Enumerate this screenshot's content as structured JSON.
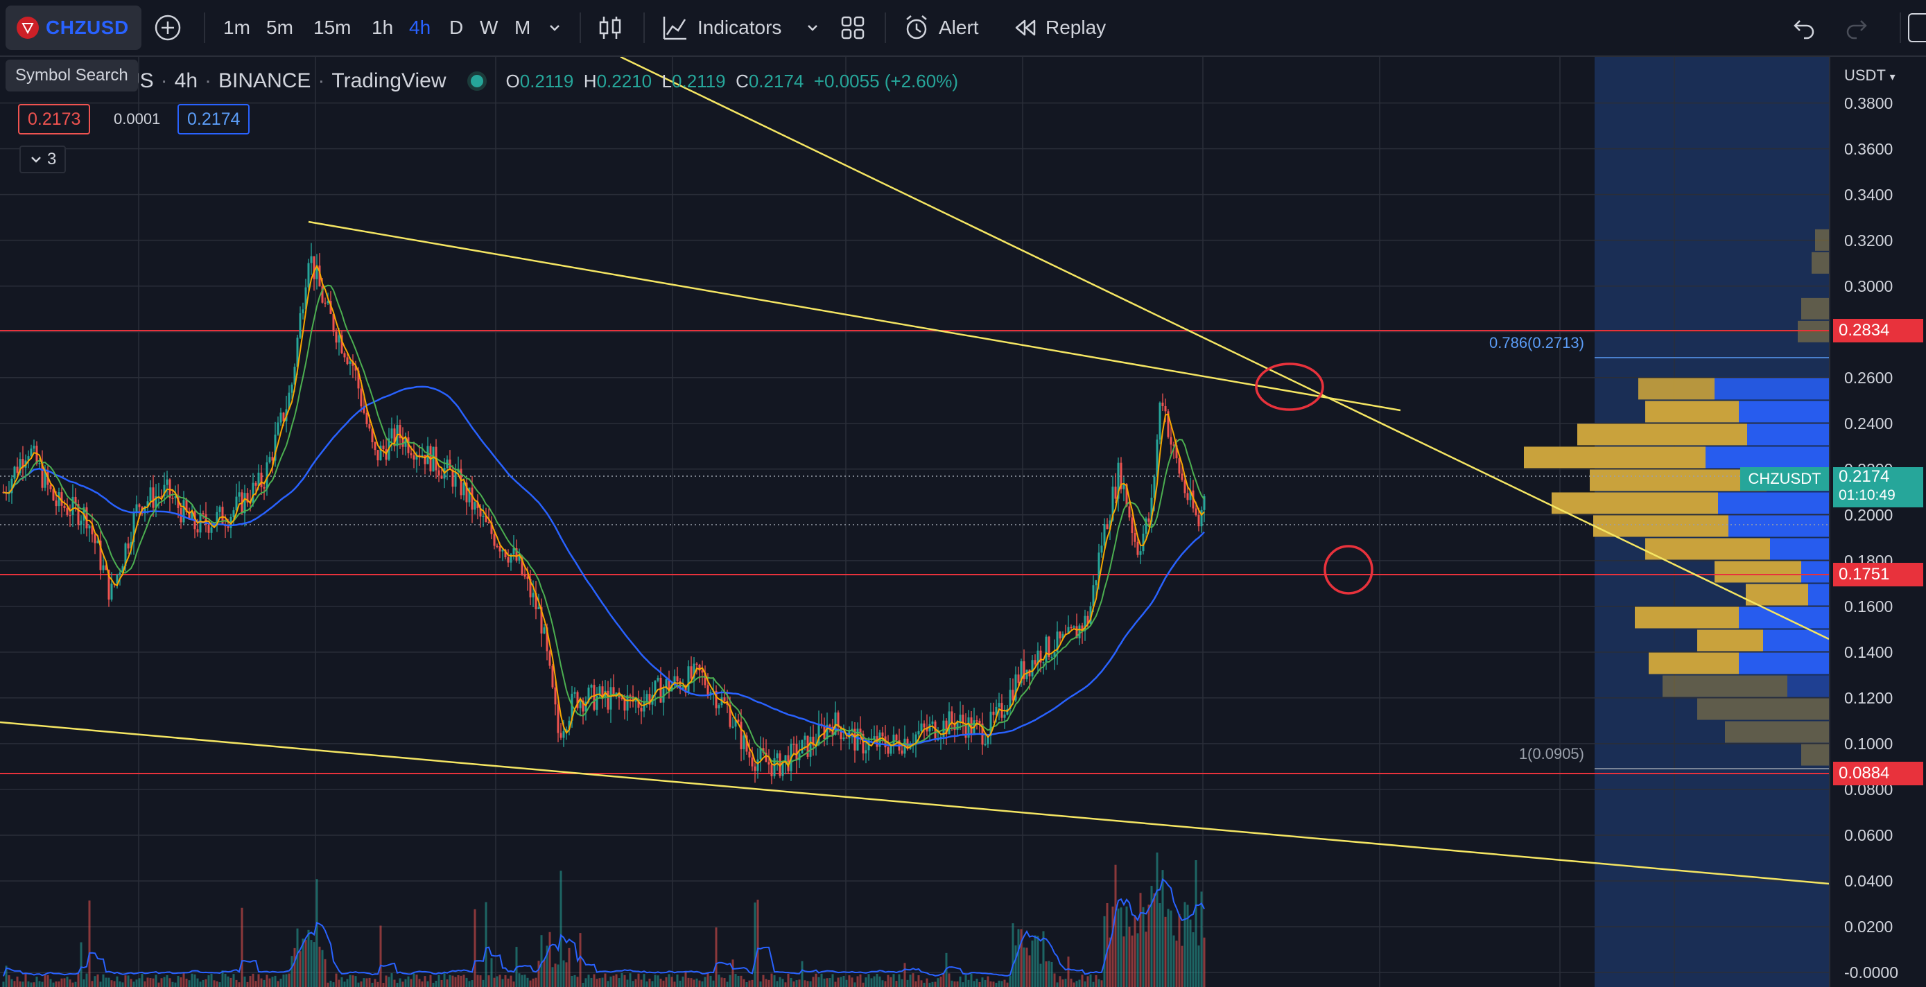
{
  "toolbar": {
    "symbol": "CHZUSD",
    "intervals": [
      "1m",
      "5m",
      "15m",
      "1h",
      "4h",
      "D",
      "W",
      "M"
    ],
    "active_interval": "4h",
    "indicators_label": "Indicators",
    "alert_label": "Alert",
    "replay_label": "Replay"
  },
  "tooltip": {
    "text": "Symbol Search"
  },
  "legend": {
    "title_visible": "rUS",
    "interval": "4h",
    "exchange": "BINANCE",
    "source": "TradingView",
    "open_label": "O",
    "open": "0.2119",
    "high_label": "H",
    "high": "0.2210",
    "low_label": "L",
    "low": "0.2119",
    "close_label": "C",
    "close": "0.2174",
    "change": "+0.0055 (+2.60%)",
    "bid": "0.2173",
    "spread": "0.0001",
    "ask": "0.2174",
    "indicators_count": "3"
  },
  "price_axis": {
    "currency": "USDT",
    "ticks": [
      "0.3800",
      "0.3600",
      "0.3400",
      "0.3200",
      "0.3000",
      "0.2800",
      "0.2600",
      "0.2400",
      "0.2200",
      "0.2000",
      "0.1800",
      "0.1600",
      "0.1400",
      "0.1200",
      "0.1000",
      "0.0800",
      "0.0600",
      "0.0400",
      "0.0200",
      "-0.0000"
    ],
    "tags": {
      "level_1": "0.2834",
      "level_2": "0.1751",
      "level_3": "0.0884",
      "symbol_tag": "CHZUSDT",
      "last_price": "0.2174",
      "countdown": "01:10:49"
    }
  },
  "fib": {
    "upper_label": "0.786(0.2713)",
    "lower_label": "1(0.0905)"
  },
  "colors": {
    "background": "#131722",
    "accent": "#2962ff",
    "up": "#26a69a",
    "down": "#ef5350",
    "trendline": "#f5e663",
    "hline": "#e8323c",
    "ma_fast": "#f7a600",
    "ma_mid": "#4caf50",
    "ma_slow": "#2962ff"
  }
}
